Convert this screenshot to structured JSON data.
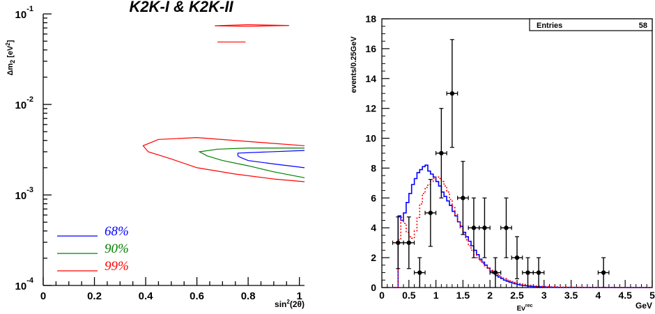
{
  "chart_data": [
    {
      "type": "contour",
      "title": "K2K-I & K2K-II",
      "xlabel": "sin²(2θ)",
      "ylabel": "Δm₂ [eV²]",
      "ylabel_main": "Δm",
      "ylabel_sub": "2",
      "ylabel_tail": " [eV",
      "ylabel_sup": "2",
      "ylabel_close": "]",
      "xlabel_main": "sin",
      "xlabel_sup": "2",
      "xlabel_tail": "(2θ)",
      "x_scale": "linear",
      "y_scale": "log",
      "xlim": [
        0,
        1.02
      ],
      "ylim": [
        0.0001,
        0.1
      ],
      "x_ticks": [
        "0",
        "0.2",
        "0.4",
        "0.6",
        "0.8",
        "1"
      ],
      "y_ticks": [
        {
          "base": "10",
          "exp": "-1",
          "value": 0.1
        },
        {
          "base": "10",
          "exp": "-2",
          "value": 0.01
        },
        {
          "base": "10",
          "exp": "-3",
          "value": 0.001
        },
        {
          "base": "10",
          "exp": "-4",
          "value": 0.0001
        }
      ],
      "legend_position": "bottom-left",
      "series": [
        {
          "name": "68%",
          "color": "#0000ff",
          "curves": [
            {
              "closed": false,
              "points": [
                [
                  1.02,
                  0.0031
                ],
                [
                  0.76,
                  0.0029
                ],
                [
                  0.76,
                  0.0027
                ],
                [
                  0.77,
                  0.0026
                ],
                [
                  0.8,
                  0.0024
                ],
                [
                  0.9,
                  0.0022
                ],
                [
                  1.02,
                  0.002
                ]
              ]
            }
          ]
        },
        {
          "name": "90%",
          "color": "#008000",
          "curves": [
            {
              "closed": false,
              "points": [
                [
                  1.02,
                  0.0033
                ],
                [
                  0.8,
                  0.0033
                ],
                [
                  0.68,
                  0.0032
                ],
                [
                  0.61,
                  0.003
                ],
                [
                  0.64,
                  0.0027
                ],
                [
                  0.7,
                  0.0024
                ],
                [
                  0.8,
                  0.0021
                ],
                [
                  0.9,
                  0.0018
                ],
                [
                  1.02,
                  0.00155
                ]
              ]
            }
          ]
        },
        {
          "name": "99%",
          "color": "#ff0000",
          "curves": [
            {
              "closed": false,
              "points": [
                [
                  1.02,
                  0.0035
                ],
                [
                  0.85,
                  0.0038
                ],
                [
                  0.6,
                  0.0043
                ],
                [
                  0.45,
                  0.0041
                ],
                [
                  0.39,
                  0.0035
                ],
                [
                  0.41,
                  0.003
                ],
                [
                  0.5,
                  0.0025
                ],
                [
                  0.6,
                  0.002
                ],
                [
                  0.75,
                  0.0017
                ],
                [
                  0.9,
                  0.0015
                ],
                [
                  1.02,
                  0.0014
                ]
              ]
            },
            {
              "closed": true,
              "points": [
                [
                  0.67,
                  0.074
                ],
                [
                  0.8,
                  0.076
                ],
                [
                  0.96,
                  0.0745
                ],
                [
                  0.8,
                  0.073
                ],
                [
                  0.67,
                  0.074
                ]
              ]
            },
            {
              "closed": false,
              "points": [
                [
                  0.68,
                  0.049
                ],
                [
                  0.79,
                  0.049
                ]
              ]
            }
          ]
        }
      ]
    },
    {
      "type": "histogram",
      "xlabel": "Eν^rec",
      "xlabel_main": "Eν",
      "xlabel_sup": "rec",
      "xlabel_unit": "GeV",
      "ylabel": "events/0.25GeV",
      "xlim": [
        0,
        5
      ],
      "ylim": [
        0,
        18
      ],
      "x_ticks": [
        "0",
        "0.5",
        "1",
        "1.5",
        "2",
        "2.5",
        "3",
        "3.5",
        "4",
        "4.5",
        "5"
      ],
      "y_ticks": [
        "0",
        "2",
        "4",
        "6",
        "8",
        "10",
        "12",
        "14",
        "16",
        "18"
      ],
      "stats_box": {
        "label": "Entries",
        "value": "58"
      },
      "data_points": {
        "name": "data",
        "bin_width": 0.2,
        "x": [
          0.3,
          0.5,
          0.7,
          0.9,
          1.1,
          1.3,
          1.5,
          1.7,
          1.9,
          2.1,
          2.3,
          2.5,
          2.7,
          2.9,
          4.1
        ],
        "y": [
          3,
          3,
          1,
          5,
          9,
          13,
          6,
          4,
          4,
          1,
          4,
          2,
          1,
          1,
          1
        ],
        "err": [
          1.73,
          1.73,
          1.0,
          2.24,
          3.0,
          3.61,
          2.45,
          2.0,
          2.0,
          1.0,
          2.0,
          1.41,
          1.0,
          1.0,
          1.0
        ]
      },
      "series": [
        {
          "name": "blue",
          "color": "#0000ff",
          "style": "solid",
          "bin_width": 0.05,
          "x0": 0.2,
          "values": [
            0,
            0,
            4.8,
            4.5,
            5.0,
            5.7,
            6.3,
            6.9,
            7.3,
            7.7,
            7.9,
            8.1,
            8.2,
            7.8,
            7.6,
            7.4,
            7.1,
            6.8,
            6.4,
            6.1,
            5.8,
            5.5,
            5.1,
            4.8,
            4.4,
            4.1,
            3.7,
            3.4,
            3.1,
            2.8,
            2.5,
            2.2,
            1.9,
            1.7,
            1.5,
            1.3,
            1.1,
            0.95,
            0.8,
            0.7,
            0.6,
            0.5,
            0.42,
            0.36,
            0.3,
            0.25,
            0.2,
            0.17,
            0.14,
            0.12,
            0.1,
            0.08,
            0.07,
            0.06,
            0.05,
            0.04,
            0.03,
            0.03,
            0.02,
            0.02,
            0.02,
            0.01,
            0.01,
            0.01,
            0.01,
            0.01,
            0.01,
            0.01,
            0.01,
            0.01,
            0.01,
            0.01,
            0.01,
            0.01,
            0.01,
            0.01,
            0.01,
            0.01,
            0.01,
            0.01,
            0.01,
            0.01,
            0,
            0,
            0,
            0,
            0,
            0,
            0,
            0,
            0,
            0,
            0,
            0,
            0,
            0
          ]
        },
        {
          "name": "red",
          "color": "#ff0000",
          "style": "dotted",
          "bin_width": 0.05,
          "x0": 0.2,
          "values": [
            0,
            0,
            3.2,
            4.7,
            4.3,
            3.7,
            3.4,
            3.3,
            3.8,
            4.7,
            5.6,
            6.3,
            6.7,
            6.9,
            7.1,
            7.3,
            7.4,
            7.3,
            7.1,
            6.8,
            6.4,
            5.9,
            5.4,
            4.9,
            4.4,
            4.0,
            3.6,
            3.2,
            2.8,
            2.5,
            2.2,
            2.0,
            1.8,
            1.6,
            1.45,
            1.3,
            1.15,
            1.0,
            0.9,
            0.8,
            0.7,
            0.6,
            0.5,
            0.45,
            0.4,
            0.35,
            0.3,
            0.26,
            0.22,
            0.19,
            0.16,
            0.14,
            0.12,
            0.1,
            0.09,
            0.08,
            0.07,
            0.06,
            0.05,
            0.05,
            0.04,
            0.04,
            0.03,
            0.03,
            0.03,
            0.02,
            0.02,
            0.02,
            0.02,
            0.02,
            0.02,
            0.01,
            0.01,
            0.01,
            0.01,
            0.01,
            0.01,
            0.01,
            0.01,
            0.01,
            0.01,
            0.01,
            0.01,
            0.01,
            0.01,
            0.01,
            0,
            0,
            0,
            0,
            0,
            0,
            0,
            0,
            0,
            0
          ]
        }
      ]
    }
  ]
}
